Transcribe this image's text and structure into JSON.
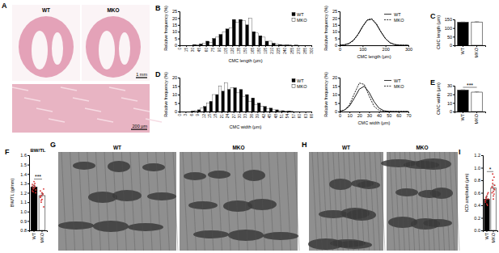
{
  "chart_data": [
    {
      "type": "histogram",
      "panel_label": "B",
      "x_label": "CMC length (μm)",
      "y_label": "Relative frequency (%)",
      "bins": [
        0,
        15,
        30,
        45,
        60,
        75,
        90,
        105,
        120,
        135,
        150,
        165,
        180,
        195,
        210,
        225,
        240,
        255,
        270,
        285,
        300
      ],
      "series": [
        {
          "name": "WT",
          "color": "#000000",
          "values": [
            0,
            0,
            0.5,
            1,
            3,
            5,
            8,
            12,
            19,
            19,
            15,
            10,
            7,
            3,
            1.5,
            0.5,
            0.2,
            0,
            0,
            0
          ]
        },
        {
          "name": "MKO",
          "color": "#ffffff",
          "values": [
            0,
            0,
            0.3,
            1.5,
            2,
            6,
            10,
            13,
            17,
            18,
            20,
            9,
            6,
            3,
            1,
            0.5,
            0.3,
            0.1,
            0,
            0
          ]
        }
      ],
      "xlim": [
        0,
        300
      ],
      "xticks": [
        0,
        15,
        30,
        45,
        60,
        75,
        90,
        105,
        120,
        135,
        150,
        165,
        180,
        195,
        210,
        225,
        240,
        255,
        270,
        285,
        300
      ],
      "ylim": [
        0,
        25
      ],
      "yticks": [
        0,
        5,
        10,
        15,
        20,
        25
      ],
      "legend": "upper right"
    },
    {
      "type": "line",
      "x_label": "CMC length (μm)",
      "y_label": "Relative frequency (%)",
      "x": [
        0,
        20,
        40,
        60,
        80,
        100,
        120,
        140,
        160,
        180,
        200,
        220,
        240,
        260,
        280,
        300
      ],
      "series": [
        {
          "name": "WT",
          "color": "#000000",
          "line_style": "solid",
          "values": [
            0.08,
            0.36,
            1.31,
            3.69,
            8.08,
            13.87,
            18.5,
            19.2,
            15.5,
            9.78,
            4.8,
            1.82,
            0.54,
            0.13,
            0.02,
            0
          ]
        },
        {
          "name": "MKO",
          "color": "#000000",
          "line_style": "dashed",
          "values": [
            0.06,
            0.3,
            1.1,
            3.4,
            7.7,
            13.6,
            18.6,
            19.6,
            16,
            10.1,
            4.9,
            1.8,
            0.5,
            0.1,
            0.02,
            0
          ]
        }
      ],
      "xlim": [
        0,
        300
      ],
      "xticks": [
        0,
        100,
        200,
        300
      ],
      "ylim": [
        0,
        25
      ],
      "yticks": [
        0,
        5,
        10,
        15,
        20,
        25
      ],
      "legend": "upper right"
    },
    {
      "type": "bar",
      "panel_label": "C",
      "y_label": "CMC length (μm)",
      "categories": [
        "WT",
        "MKO"
      ],
      "values": [
        133,
        135
      ],
      "errors": [
        2,
        2
      ],
      "colors": [
        "#000000",
        "#ffffff"
      ],
      "ylim": [
        0,
        150
      ],
      "yticks": [
        0,
        50,
        100,
        150
      ]
    },
    {
      "type": "histogram",
      "panel_label": "D",
      "x_label": "CMC width (μm)",
      "y_label": "Relative frequency (%)",
      "bins": [
        0,
        3,
        6,
        9,
        12,
        15,
        18,
        21,
        24,
        27,
        30,
        33,
        36,
        39,
        42,
        45,
        48,
        51,
        54,
        57,
        60,
        63,
        66
      ],
      "series": [
        {
          "name": "WT",
          "color": "#000000",
          "values": [
            0,
            0,
            0.3,
            1,
            3,
            6,
            10,
            12,
            13,
            14,
            13,
            10,
            8,
            5,
            3,
            2,
            1,
            0.5,
            0.3,
            0,
            0,
            0
          ]
        },
        {
          "name": "MKO",
          "color": "#ffffff",
          "values": [
            0,
            0,
            0.5,
            2,
            5,
            10,
            15,
            17,
            14,
            11,
            9,
            6,
            4,
            3,
            1.5,
            1,
            0.5,
            0.3,
            0.1,
            0,
            0,
            0
          ]
        }
      ],
      "xlim": [
        0,
        66
      ],
      "xticks": [
        0,
        3,
        6,
        9,
        12,
        15,
        18,
        21,
        24,
        27,
        30,
        33,
        36,
        39,
        42,
        45,
        48,
        51,
        54,
        57,
        60,
        63,
        66
      ],
      "ylim": [
        0,
        20
      ],
      "yticks": [
        0,
        5,
        10,
        15,
        20
      ],
      "legend": "upper right"
    },
    {
      "type": "line",
      "x_label": "CMC width (μm)",
      "y_label": "Relative frequency (%)",
      "x": [
        0,
        5,
        10,
        15,
        20,
        25,
        30,
        35,
        40,
        45,
        50,
        55,
        60,
        65,
        70
      ],
      "series": [
        {
          "name": "WT",
          "color": "#000000",
          "line_style": "solid",
          "values": [
            0.17,
            0.9,
            3.25,
            7.97,
            13.2,
            14.9,
            11.3,
            5.83,
            2.03,
            0.48,
            0.08,
            0.01,
            0,
            0,
            0
          ]
        },
        {
          "name": "MKO",
          "color": "#000000",
          "line_style": "dashed",
          "values": [
            0.13,
            0.92,
            4.03,
            10.6,
            16.8,
            16,
            9.13,
            3.12,
            0.64,
            0.08,
            0.01,
            0,
            0,
            0,
            0
          ]
        }
      ],
      "xlim": [
        0,
        70
      ],
      "xticks": [
        0,
        10,
        20,
        30,
        40,
        50,
        60,
        70
      ],
      "ylim": [
        0,
        20
      ],
      "yticks": [
        0,
        5,
        10,
        15,
        20
      ],
      "legend": "upper right"
    },
    {
      "type": "bar",
      "panel_label": "E",
      "y_label": "CMC width (μm)",
      "categories": [
        "WT",
        "MKO"
      ],
      "values": [
        24.8,
        22.5
      ],
      "errors": [
        0.5,
        0.5
      ],
      "colors": [
        "#000000",
        "#ffffff"
      ],
      "annotations": [
        "***"
      ],
      "ylim": [
        0,
        30
      ],
      "yticks": [
        0,
        10,
        20,
        30
      ]
    },
    {
      "type": "bar",
      "panel_label": "F",
      "title": "BW/TL",
      "y_label": "BW/TL (g/mm)",
      "categories": [
        "WT",
        "MKO"
      ],
      "values": [
        1.26,
        1.17
      ],
      "errors": [
        0.02,
        0.02
      ],
      "colors": [
        "#000000",
        "#ffffff"
      ],
      "points": [
        [
          1.22,
          1.25,
          1.28,
          1.3,
          1.2,
          1.27,
          1.24,
          1.32,
          1.26,
          1.23,
          1.29,
          1.21,
          1.25,
          1.27
        ],
        [
          1.15,
          1.1,
          1.2,
          1.18,
          1.05,
          1.22,
          1.17,
          1.13,
          1.19,
          1.24,
          1.16,
          1.12
        ]
      ],
      "marker": "circle",
      "annotations": [
        "***"
      ],
      "ylim": [
        0.8,
        1.6
      ],
      "yticks": [
        0.8,
        0.9,
        {
          "value": 1,
          "label": "1.0"
        },
        1.1,
        1.2,
        1.3,
        1.4,
        1.5,
        1.6
      ]
    },
    {
      "type": "bar",
      "panel_label": "I",
      "y_label": "ICD amplitude (μm)",
      "categories": [
        "WT",
        "MKO"
      ],
      "values": [
        0.5,
        0.68
      ],
      "errors": [
        0.05,
        0.05
      ],
      "colors": [
        "#000000",
        "#ffffff"
      ],
      "points": [
        [
          0.45,
          0.5,
          0.55,
          0.4,
          0.6,
          0.48,
          0.52,
          0.42,
          0.58,
          0.5,
          0.47,
          0.53
        ],
        [
          0.6,
          0.75,
          0.55,
          0.85,
          0.65,
          0.7,
          0.9,
          0.62,
          0.58,
          0.72,
          0.68,
          0.8,
          0.5,
          0.66
        ]
      ],
      "marker": "circle",
      "annotations": [
        "*"
      ],
      "ylim": [
        0,
        1.2
      ],
      "yticks": [
        {
          "value": 0,
          "label": "0.0"
        },
        0.2,
        0.4,
        0.6,
        0.8,
        {
          "value": 1,
          "label": "1.0"
        },
        1.2
      ]
    }
  ],
  "images": [
    {
      "panel_label": "A",
      "labels": [
        "WT",
        "MKO"
      ],
      "scale_bars": [
        "1 mm",
        "200 μm"
      ]
    },
    {
      "panel_label": "G",
      "labels": [
        "WT",
        "MKO"
      ]
    },
    {
      "panel_label": "H",
      "labels": [
        "WT",
        "MKO"
      ]
    }
  ]
}
